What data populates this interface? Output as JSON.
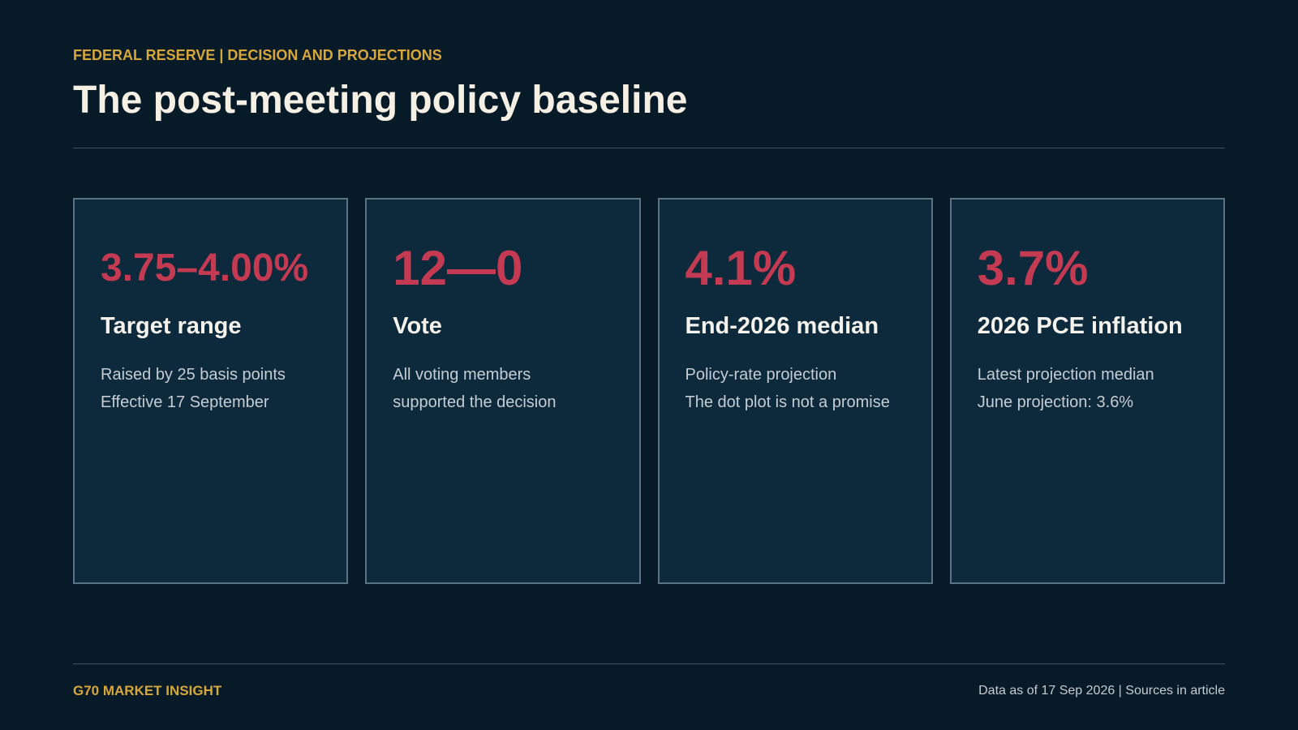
{
  "header": {
    "kicker": "FEDERAL RESERVE | DECISION AND PROJECTIONS",
    "title": "The post-meeting policy baseline"
  },
  "cards": [
    {
      "value": "3.75–4.00%",
      "label": "Target range",
      "lines": [
        "Raised by 25 basis points",
        "Effective 17 September"
      ]
    },
    {
      "value": "12—0",
      "label": "Vote",
      "lines": [
        "All voting members",
        "supported the decision"
      ]
    },
    {
      "value": "4.1%",
      "label": "End-2026 median",
      "lines": [
        "Policy-rate projection",
        "The dot plot is not a promise"
      ]
    },
    {
      "value": "3.7%",
      "label": "2026 PCE inflation",
      "lines": [
        "Latest projection median",
        "June projection: 3.6%"
      ]
    }
  ],
  "footer": {
    "brand": "G70 MARKET INSIGHT",
    "note": "Data as of 17 Sep 2026 | Sources in article"
  },
  "colors": {
    "background": "#071a28",
    "card_background": "#0d2a3d",
    "accent_gold": "#d8a73b",
    "accent_red": "#c33a52"
  }
}
